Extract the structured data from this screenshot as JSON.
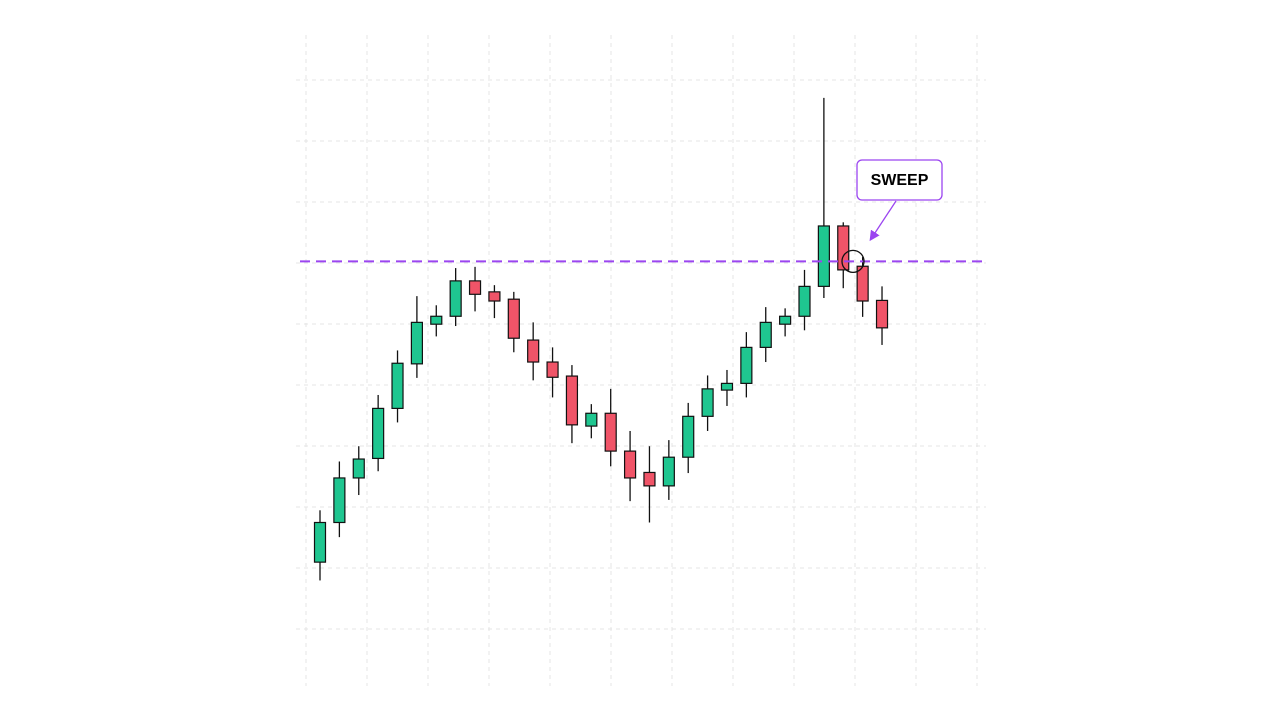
{
  "chart_data": {
    "type": "candlestick",
    "annotation": "SWEEP",
    "level": 59.8,
    "level_color": "#9b45f0",
    "up_color": "#1fc690",
    "down_color": "#f05468",
    "ylim": [
      -9.8,
      96.9
    ],
    "grid": true,
    "open": [
      10.5,
      17.0,
      24.3,
      27.5,
      35.7,
      43.0,
      49.5,
      50.8,
      56.6,
      54.8,
      53.6,
      46.9,
      43.3,
      41.0,
      32.8,
      34.9,
      28.7,
      25.2,
      23.0,
      27.7,
      34.4,
      38.7,
      39.8,
      45.7,
      49.5,
      50.8,
      55.7,
      65.6,
      59.0,
      53.4
    ],
    "high": [
      19.0,
      27.0,
      29.5,
      37.9,
      45.2,
      54.1,
      52.6,
      58.7,
      58.9,
      55.9,
      54.8,
      49.8,
      45.7,
      42.8,
      36.4,
      38.9,
      32.0,
      29.5,
      30.5,
      36.6,
      41.1,
      42.0,
      48.2,
      52.3,
      52.1,
      58.4,
      86.6,
      66.2,
      60.5,
      55.7
    ],
    "low": [
      7.5,
      14.6,
      21.5,
      25.4,
      33.4,
      40.7,
      47.5,
      49.2,
      51.6,
      50.5,
      44.9,
      40.3,
      37.5,
      30.0,
      30.8,
      26.2,
      20.5,
      17.0,
      20.7,
      25.1,
      32.0,
      36.1,
      37.5,
      43.3,
      47.5,
      48.5,
      53.8,
      55.4,
      50.7,
      46.1
    ],
    "close": [
      17.0,
      24.3,
      27.4,
      35.7,
      43.1,
      49.8,
      50.8,
      56.6,
      54.4,
      53.3,
      47.2,
      43.3,
      40.8,
      33.0,
      34.9,
      28.7,
      24.3,
      23.0,
      27.7,
      34.4,
      38.9,
      39.8,
      45.7,
      49.8,
      50.8,
      55.7,
      65.6,
      58.4,
      53.3,
      48.9
    ]
  }
}
